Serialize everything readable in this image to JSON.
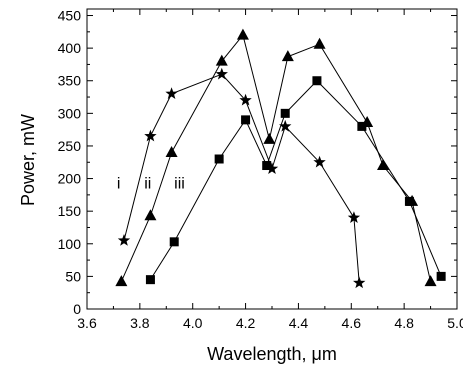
{
  "chart_data": {
    "type": "line",
    "title": "",
    "xlabel": "Wavelength, μm",
    "ylabel": "Power, mW",
    "xlim": [
      3.6,
      5.0
    ],
    "ylim": [
      0,
      460
    ],
    "xticks": [
      3.6,
      3.8,
      4.0,
      4.2,
      4.4,
      4.6,
      4.8,
      5.0
    ],
    "yticks": [
      0,
      50,
      100,
      150,
      200,
      250,
      300,
      350,
      400,
      450
    ],
    "xtick_labels": [
      "3.6",
      "3.8",
      "4.0",
      "4.2",
      "4.4",
      "4.6",
      "4.8",
      "5.0"
    ],
    "ytick_labels": [
      "0",
      "50",
      "100",
      "150",
      "200",
      "250",
      "300",
      "350",
      "400",
      "450"
    ],
    "grid": false,
    "series": [
      {
        "marker": "star",
        "x": [
          3.74,
          3.84,
          3.92,
          4.11,
          4.2,
          4.3,
          4.35,
          4.48,
          4.61,
          4.63
        ],
        "y": [
          105,
          265,
          330,
          360,
          320,
          215,
          280,
          225,
          140,
          40
        ]
      },
      {
        "marker": "triangle",
        "x": [
          3.73,
          3.84,
          3.92,
          4.11,
          4.19,
          4.29,
          4.36,
          4.48,
          4.66,
          4.72,
          4.83,
          4.9
        ],
        "y": [
          42,
          143,
          240,
          380,
          420,
          260,
          387,
          406,
          286,
          220,
          165,
          42
        ]
      },
      {
        "marker": "square",
        "x": [
          3.84,
          3.93,
          4.1,
          4.2,
          4.28,
          4.35,
          4.47,
          4.64,
          4.82,
          4.94
        ],
        "y": [
          45,
          103,
          230,
          290,
          220,
          300,
          350,
          280,
          165,
          50
        ]
      }
    ],
    "annotations": [
      {
        "text": "i",
        "x": 3.72,
        "y": 185
      },
      {
        "text": "ii",
        "x": 3.83,
        "y": 185
      },
      {
        "text": "iii",
        "x": 3.95,
        "y": 185
      }
    ]
  }
}
